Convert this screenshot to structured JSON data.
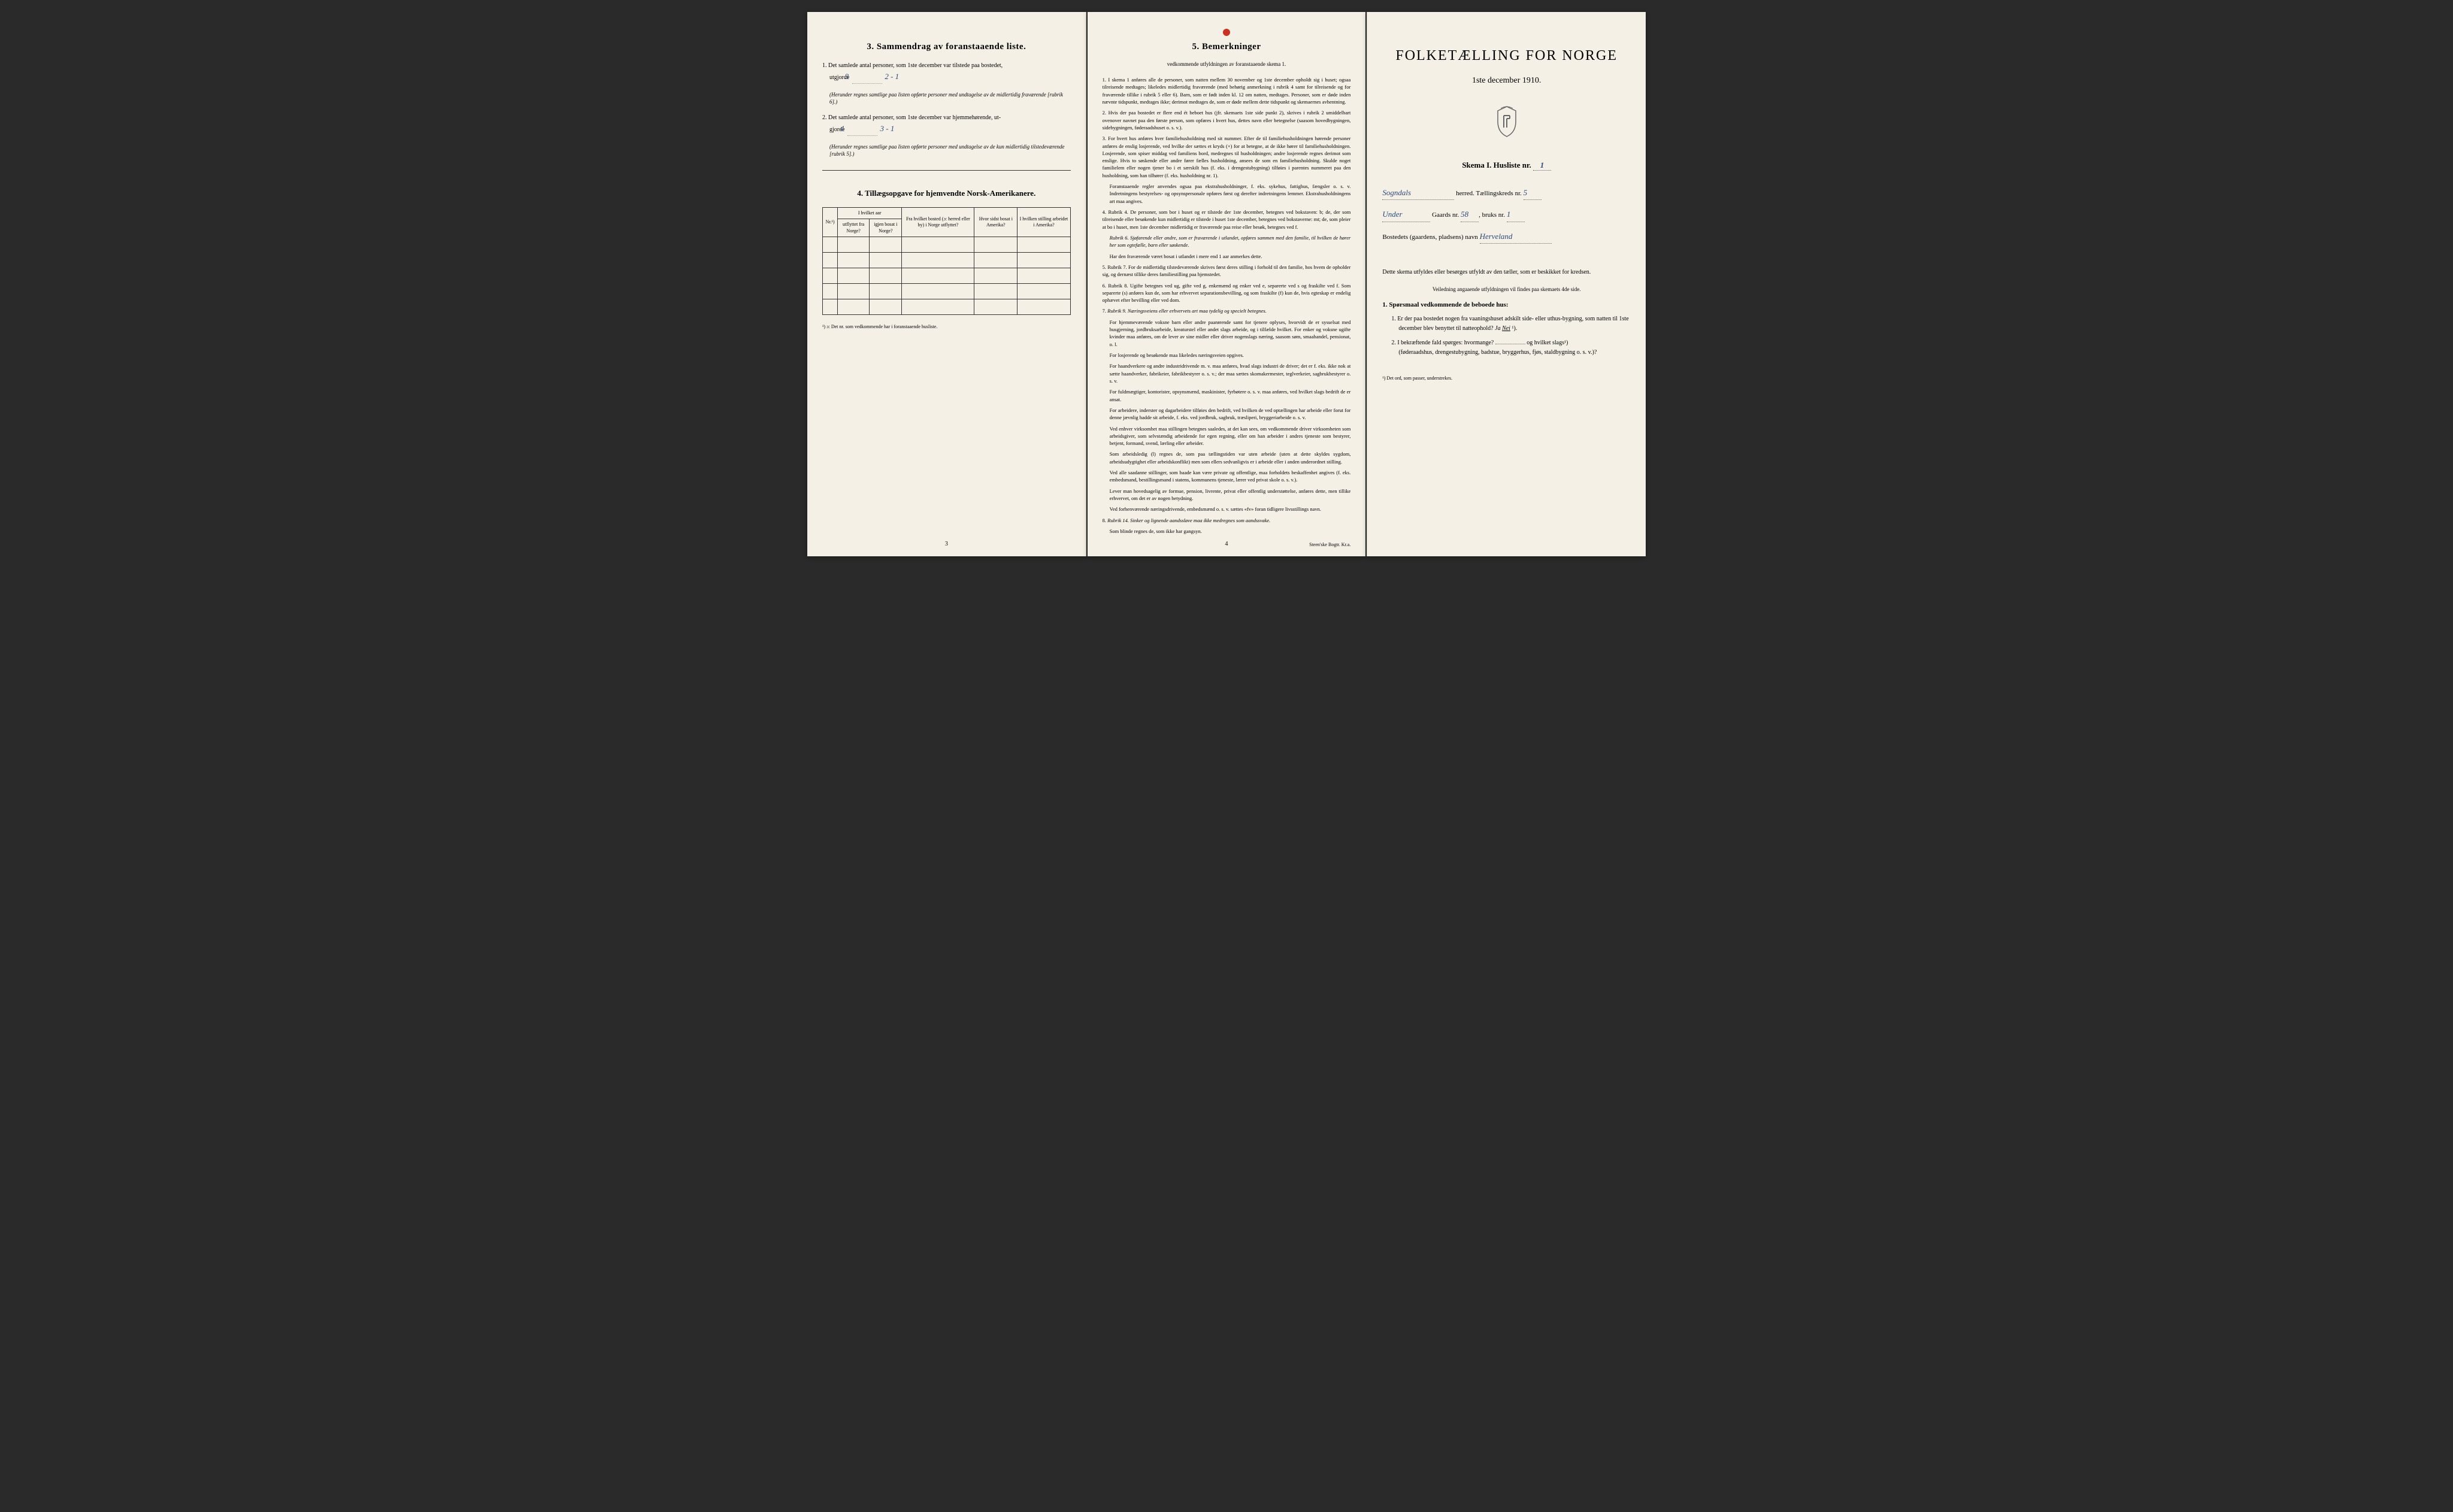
{
  "panel_left": {
    "section3_title": "3. Sammendrag av foranstaaende liste.",
    "item1_prefix": "1.",
    "item1_text": "Det samlede antal personer, som 1ste december var tilstede paa bostedet,",
    "item1_line2": "utgjorde",
    "item1_val_printed": "3",
    "item1_val_hand": "2 - 1",
    "item1_note": "(Herunder regnes samtlige paa listen opførte personer med undtagelse av de midlertidig fraværende [rubrik 6].)",
    "item2_prefix": "2.",
    "item2_text": "Det samlede antal personer, som 1ste december var hjemmehørende, ut-",
    "item2_line2": "gjorde",
    "item2_val_printed": "4",
    "item2_val_hand": "3 - 1",
    "item2_note": "(Herunder regnes samtlige paa listen opførte personer med undtagelse av de kun midlertidig tilstedeværende [rubrik 5].)",
    "section4_title": "4. Tillægsopgave for hjemvendte Norsk-Amerikanere.",
    "table_headers": {
      "nr": "Nr.¹)",
      "group1": "I hvilket aar",
      "col1": "utflyttet fra Norge?",
      "col2": "igjen bosat i Norge?",
      "col3": "Fra hvilket bosted (ɔ: herred eller by) i Norge utflyttet?",
      "col4": "Hvor sidst bosat i Amerika?",
      "col5": "I hvilken stilling arbeidet i Amerika?"
    },
    "table_rows": 5,
    "footnote": "¹) ɔ: Det nr. som vedkommende har i foranstaaende husliste.",
    "page_num": "3"
  },
  "panel_middle": {
    "section5_title": "5. Bemerkninger",
    "section5_sub": "vedkommende utfyldningen av foranstaaende skema 1.",
    "notes": [
      {
        "n": "1.",
        "text": "I skema 1 anføres alle de personer, som natten mellem 30 november og 1ste december opholdt sig i huset; ogsaa tilreisende medtages; likeledes midlertidig fraværende (med behørig anmerkning i rubrik 4 samt for tilreisende og for fraværende tillike i rubrik 5 eller 6). Barn, som er født inden kl. 12 om natten, medtages. Personer, som er døde inden nævnte tidspunkt, medtages ikke; derimot medtages de, som er døde mellem dette tidspunkt og skemaernes avhentning."
      },
      {
        "n": "2.",
        "text": "Hvis der paa bostedet er flere end ét beboet hus (jfr. skemaets 1ste side punkt 2), skrives i rubrik 2 umiddelbart ovenover navnet paa den første person, som opføres i hvert hus, dettes navn eller betegnelse (saasom hovedbygningen, sidebygningen, føderaadshuset o. s. v.)."
      },
      {
        "n": "3.",
        "text": "For hvert hus anføres hver familiehusholdning med sit nummer. Efter de til familiehusholdningen hørende personer anføres de enslig losjerende, ved hvilke der sættes et kryds (×) for at betegne, at de ikke hører til familiehusholdningen. Losjerende, som spiser middag ved familiens bord, medregnes til husholdningen; andre losjerende regnes derimot som enslige. Hvis to søskende eller andre fører fælles husholdning, ansees de som en familiehusholdning. Skulde noget familielem eller nogen tjener bo i et særskilt hus (f. eks. i drengestubygning) tilføies i parentes nummeret paa den husholdning, som han tilhører (f. eks. husholdning nr. 1)."
      },
      {
        "n": "",
        "text": "Foranstaaende regler anvendes ogsaa paa ekstrahusholdninger, f. eks. sykehus, fattighus, fængsler o. s. v. Indretningens bestyrelses- og opsynspersonale opføres først og derefter indretningens lemmer. Ekstrahusholdningens art maa angives."
      },
      {
        "n": "4.",
        "text": "Rubrik 4. De personer, som bor i huset og er tilstede der 1ste december, betegnes ved bokstaven: b; de, der som tilreisende eller besøkende kun midlertidig er tilstede i huset 1ste december, betegnes ved bokstaverne: mt; de, som pleier at bo i huset, men 1ste december midlertidig er fraværende paa reise eller besøk, betegnes ved f."
      },
      {
        "n": "",
        "text": "Rubrik 6. Sjøfarende eller andre, som er fraværende i utlandet, opføres sammen med den familie, til hvilken de hører her som egtefælle, barn eller søskende.",
        "italic": true
      },
      {
        "n": "",
        "text": "Har den fraværende været bosat i utlandet i mere end 1 aar anmerkes dette."
      },
      {
        "n": "5.",
        "text": "Rubrik 7. For de midlertidig tilstedeværende skrives først deres stilling i forhold til den familie, hos hvem de opholder sig, og dernæst tillike deres familiestilling paa hjemstedet."
      },
      {
        "n": "6.",
        "text": "Rubrik 8. Ugifte betegnes ved ug, gifte ved g, enkemænd og enker ved e, separerte ved s og fraskilte ved f. Som separerte (s) anføres kun de, som har erhvervet separationsbevilling, og som fraskilte (f) kun de, hvis egteskap er endelig ophævet efter bevilling eller ved dom."
      },
      {
        "n": "7.",
        "text": "Rubrik 9. Næringsveiens eller erhvervets art maa tydelig og specielt betegnes.",
        "italic": true
      },
      {
        "n": "",
        "text": "For hjemmeværende voksne barn eller andre paarørende samt for tjenere oplyses, hvorvidt de er sysselsat med husgjerning, jordbruksarbeide, kreaturstel eller andet slags arbeide, og i tilfælde hvilket. For enker og voksne ugifte kvinder maa anføres, om de lever av sine midler eller driver nogenslags næring, saasom søm, smaahandel, pensionat, o. l."
      },
      {
        "n": "",
        "text": "For losjerende og besøkende maa likeledes næringsveien opgives."
      },
      {
        "n": "",
        "text": "For haandverkere og andre industridrivende m. v. maa anføres, hvad slags industri de driver; det er f. eks. ikke nok at sætte haandverker, fabrikeier, fabrikbestyrer o. s. v.; der maa sættes skomakermester, teglverkeier, sagbrukbestyrer o. s. v."
      },
      {
        "n": "",
        "text": "For fuldmægtiger, kontorister, opsynsmænd, maskinister, fyrbøtere o. s. v. maa anføres, ved hvilket slags bedrift de er ansat."
      },
      {
        "n": "",
        "text": "For arbeidere, inderster og dagarbeidere tilføies den bedrift, ved hvilken de ved optællingen har arbeide eller forut for denne jævnlig hadde sit arbeide, f. eks. ved jordbruk, sagbruk, træsliperi, bryggeriarbeide o. s. v."
      },
      {
        "n": "",
        "text": "Ved enhver virksomhet maa stillingen betegnes saaledes, at det kan sees, om vedkommende driver virksomheten som arbeidsgiver, som selvstændig arbeidende for egen regning, eller om han arbeider i andres tjeneste som bestyrer, betjent, formand, svend, lærling eller arbeider."
      },
      {
        "n": "",
        "text": "Som arbeidsledig (l) regnes de, som paa tællingstiden var uten arbeide (uten at dette skyldes sygdom, arbeidsudygtighet eller arbeidskonflikt) men som ellers sedvanligvis er i arbeide eller i anden underordnet stilling."
      },
      {
        "n": "",
        "text": "Ved alle saadanne stillinger, som baade kan være private og offentlige, maa forholdets beskaffenhet angives (f. eks. embedsmand, bestillingsmand i statens, kommunens tjeneste, lærer ved privat skole o. s. v.)."
      },
      {
        "n": "",
        "text": "Lever man hovedsagelig av formue, pension, livrente, privat eller offentlig understøttelse, anføres dette, men tillike erhvervet, om det er av nogen betydning."
      },
      {
        "n": "",
        "text": "Ved forhenværende næringsdrivende, embedsmænd o. s. v. sættes «fv» foran tidligere livsstillings navn."
      },
      {
        "n": "8.",
        "text": "Rubrik 14. Sinker og lignende aandssløve maa ikke medregnes som aandssvake.",
        "italic": true
      },
      {
        "n": "",
        "text": "Som blinde regnes de, som ikke har gangsyn."
      }
    ],
    "page_num": "4",
    "printer": "Steen'ske Bogtr. Kr.a."
  },
  "panel_right": {
    "title": "FOLKETÆLLING FOR NORGE",
    "subtitle": "1ste december 1910.",
    "form_header": "Skema I. Husliste nr.",
    "husliste_nr": "1",
    "line1_hand": "Sogndals",
    "line1_label": "herred. Tællingskreds nr.",
    "line1_val": "5",
    "line2_hand": "Under",
    "line2_label": "Gaards nr.",
    "line2_val1": "58",
    "line2_label2": "bruks nr.",
    "line2_val2": "1",
    "line3_label": "Bostedets (gaardens, pladsens) navn",
    "line3_hand": "Herveland",
    "body1": "Dette skema utfyldes eller besørges utfyldt av den tæller, som er beskikket for kredsen.",
    "body1_sub": "Veiledning angaaende utfyldningen vil findes paa skemaets 4de side.",
    "q_heading": "1. Spørsmaal vedkommende de beboede hus:",
    "q1_num": "1.",
    "q1_text": "Er der paa bostedet nogen fra vaaningshuset adskilt side- eller uthus-bygning, som natten til 1ste december blev benyttet til natteophold?",
    "q1_answer_ja": "Ja",
    "q1_answer_nei": "Nei",
    "q1_sup": "¹).",
    "q2_num": "2.",
    "q2_text": "I bekræftende fald spørges: hvormange?",
    "q2_text2": "og hvilket slags¹)",
    "q2_paren": "(føderaadshus, drengestubygning, badstue, bryggerhus, fjøs, staldbygning o. s. v.)?",
    "footnote_right": "¹) Det ord, som passer, understrekes."
  }
}
